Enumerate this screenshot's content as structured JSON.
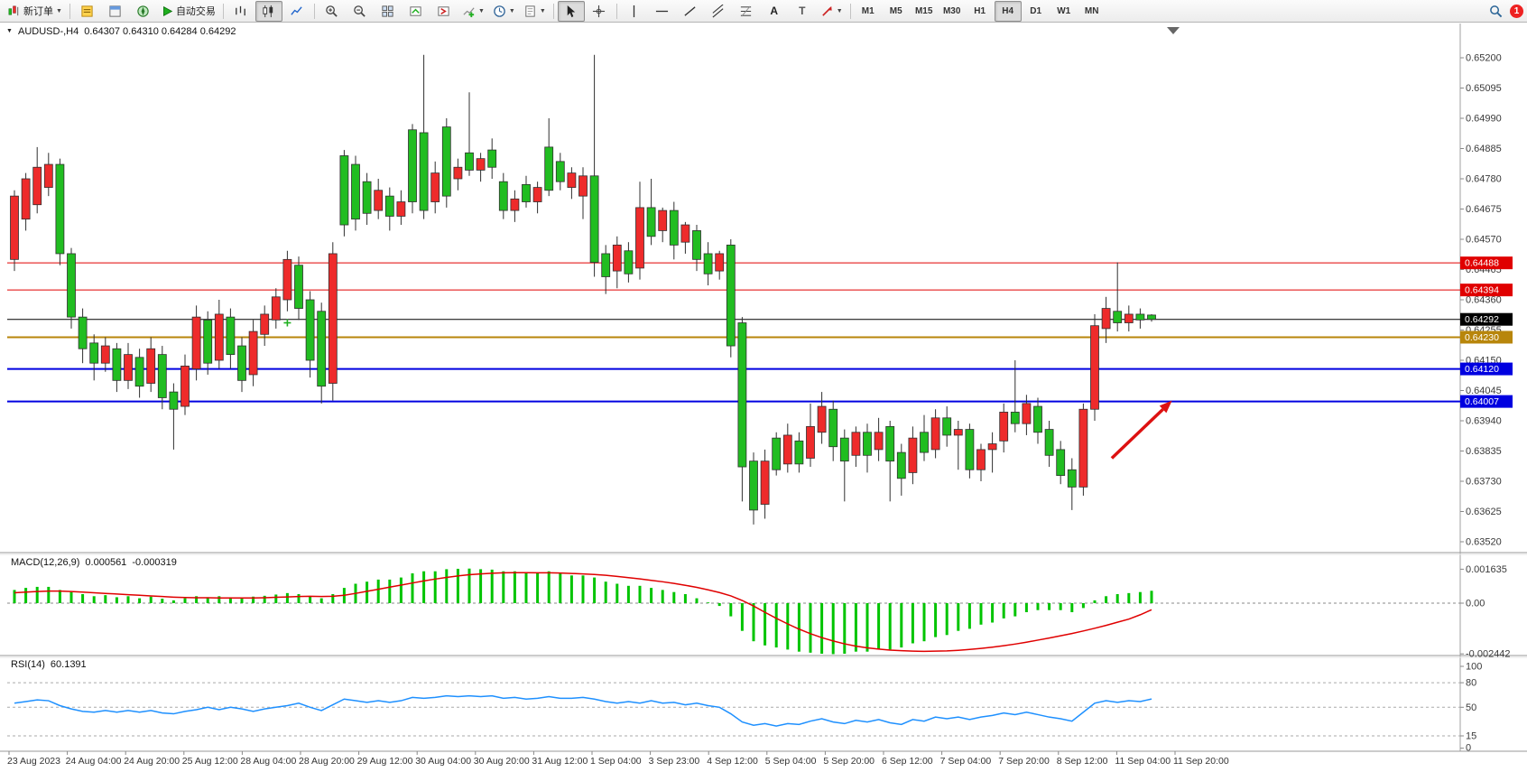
{
  "toolbar": {
    "new_order": "新订单",
    "auto_trade": "自动交易",
    "timeframes": [
      "M1",
      "M5",
      "M15",
      "M30",
      "H1",
      "H4",
      "D1",
      "W1",
      "MN"
    ],
    "active_timeframe": "H4",
    "notification_count": "1",
    "text_tool": "A",
    "label_tool": "T"
  },
  "chart_header": {
    "symbol_period": "AUDUSD-,H4",
    "ohlc_text": "0.64307 0.64310 0.64284 0.64292"
  },
  "chart_data": {
    "type": "candlestick",
    "symbol": "AUDUSD-",
    "period": "H4",
    "price_ticks": [
      "0.65200",
      "0.65095",
      "0.64990",
      "0.64885",
      "0.64780",
      "0.64675",
      "0.64570",
      "0.64465",
      "0.64360",
      "0.64255",
      "0.64150",
      "0.64045",
      "0.63940",
      "0.63835",
      "0.63730",
      "0.63625",
      "0.63520"
    ],
    "candles": [
      [
        0.645,
        0.6474,
        0.6446,
        0.6472
      ],
      [
        0.6464,
        0.648,
        0.646,
        0.6478
      ],
      [
        0.6469,
        0.6489,
        0.6466,
        0.6482
      ],
      [
        0.6475,
        0.6487,
        0.6472,
        0.6483
      ],
      [
        0.6483,
        0.6485,
        0.6448,
        0.6452
      ],
      [
        0.6452,
        0.6454,
        0.6426,
        0.643
      ],
      [
        0.643,
        0.6433,
        0.6414,
        0.6419
      ],
      [
        0.6421,
        0.6424,
        0.6408,
        0.6414
      ],
      [
        0.6414,
        0.6423,
        0.6411,
        0.642
      ],
      [
        0.6419,
        0.6421,
        0.6404,
        0.6408
      ],
      [
        0.6408,
        0.6421,
        0.6405,
        0.6417
      ],
      [
        0.6416,
        0.6419,
        0.6402,
        0.6406
      ],
      [
        0.6407,
        0.6423,
        0.6404,
        0.6419
      ],
      [
        0.6417,
        0.642,
        0.6398,
        0.6402
      ],
      [
        0.6404,
        0.6407,
        0.6384,
        0.6398
      ],
      [
        0.6399,
        0.6417,
        0.6396,
        0.6413
      ],
      [
        0.6412,
        0.6434,
        0.6408,
        0.643
      ],
      [
        0.6429,
        0.6432,
        0.641,
        0.6414
      ],
      [
        0.6415,
        0.6436,
        0.6412,
        0.6431
      ],
      [
        0.643,
        0.6433,
        0.6412,
        0.6417
      ],
      [
        0.642,
        0.6423,
        0.6404,
        0.6408
      ],
      [
        0.641,
        0.6429,
        0.6406,
        0.6425
      ],
      [
        0.6424,
        0.6434,
        0.642,
        0.6431
      ],
      [
        0.6429,
        0.644,
        0.6426,
        0.6437
      ],
      [
        0.6436,
        0.6453,
        0.6432,
        0.645
      ],
      [
        0.6448,
        0.6451,
        0.6429,
        0.6433
      ],
      [
        0.6436,
        0.6439,
        0.6409,
        0.6415
      ],
      [
        0.6432,
        0.6435,
        0.64,
        0.6406
      ],
      [
        0.6407,
        0.6456,
        0.6401,
        0.6452
      ],
      [
        0.6486,
        0.6488,
        0.6458,
        0.6462
      ],
      [
        0.6483,
        0.6486,
        0.646,
        0.6464
      ],
      [
        0.6477,
        0.648,
        0.6462,
        0.6466
      ],
      [
        0.6467,
        0.6478,
        0.6464,
        0.6474
      ],
      [
        0.6472,
        0.6475,
        0.646,
        0.6465
      ],
      [
        0.6465,
        0.6474,
        0.6462,
        0.647
      ],
      [
        0.6495,
        0.6497,
        0.6466,
        0.647
      ],
      [
        0.6494,
        0.6521,
        0.6464,
        0.6467
      ],
      [
        0.647,
        0.6484,
        0.6466,
        0.648
      ],
      [
        0.6496,
        0.6499,
        0.6468,
        0.6472
      ],
      [
        0.6478,
        0.6485,
        0.6474,
        0.6482
      ],
      [
        0.6487,
        0.6508,
        0.6479,
        0.6481
      ],
      [
        0.6481,
        0.6487,
        0.6477,
        0.6485
      ],
      [
        0.6488,
        0.6492,
        0.6478,
        0.6482
      ],
      [
        0.6477,
        0.648,
        0.6464,
        0.6467
      ],
      [
        0.6467,
        0.6474,
        0.6463,
        0.6471
      ],
      [
        0.6476,
        0.6479,
        0.6468,
        0.647
      ],
      [
        0.647,
        0.6477,
        0.6466,
        0.6475
      ],
      [
        0.6489,
        0.6499,
        0.6472,
        0.6474
      ],
      [
        0.6484,
        0.6487,
        0.6474,
        0.6477
      ],
      [
        0.6475,
        0.6482,
        0.6471,
        0.648
      ],
      [
        0.6472,
        0.6482,
        0.6464,
        0.6479
      ],
      [
        0.6479,
        0.6521,
        0.6444,
        0.6449
      ],
      [
        0.6452,
        0.6455,
        0.6438,
        0.6444
      ],
      [
        0.6446,
        0.6458,
        0.644,
        0.6455
      ],
      [
        0.6453,
        0.6456,
        0.6442,
        0.6445
      ],
      [
        0.6447,
        0.6477,
        0.6443,
        0.6468
      ],
      [
        0.6468,
        0.6478,
        0.6455,
        0.6458
      ],
      [
        0.646,
        0.6468,
        0.6456,
        0.6467
      ],
      [
        0.6467,
        0.647,
        0.645,
        0.6455
      ],
      [
        0.6456,
        0.6463,
        0.6452,
        0.6462
      ],
      [
        0.646,
        0.6462,
        0.6446,
        0.645
      ],
      [
        0.6452,
        0.6456,
        0.6441,
        0.6445
      ],
      [
        0.6446,
        0.6453,
        0.6443,
        0.6452
      ],
      [
        0.6455,
        0.6457,
        0.6416,
        0.642
      ],
      [
        0.6428,
        0.643,
        0.6366,
        0.6378
      ],
      [
        0.638,
        0.6383,
        0.6358,
        0.6363
      ],
      [
        0.6365,
        0.6384,
        0.636,
        0.638
      ],
      [
        0.6388,
        0.639,
        0.6375,
        0.6377
      ],
      [
        0.6379,
        0.6393,
        0.6376,
        0.6389
      ],
      [
        0.6387,
        0.639,
        0.6376,
        0.6379
      ],
      [
        0.6381,
        0.64,
        0.6378,
        0.6392
      ],
      [
        0.639,
        0.6404,
        0.6386,
        0.6399
      ],
      [
        0.6398,
        0.6401,
        0.638,
        0.6385
      ],
      [
        0.6388,
        0.6391,
        0.6366,
        0.638
      ],
      [
        0.6382,
        0.6392,
        0.6378,
        0.639
      ],
      [
        0.639,
        0.6393,
        0.6376,
        0.6382
      ],
      [
        0.6384,
        0.6395,
        0.638,
        0.639
      ],
      [
        0.6392,
        0.6394,
        0.6366,
        0.638
      ],
      [
        0.6383,
        0.6386,
        0.6368,
        0.6374
      ],
      [
        0.6376,
        0.6392,
        0.6372,
        0.6388
      ],
      [
        0.639,
        0.6396,
        0.638,
        0.6383
      ],
      [
        0.6384,
        0.6398,
        0.6381,
        0.6395
      ],
      [
        0.6395,
        0.6399,
        0.6385,
        0.6389
      ],
      [
        0.6389,
        0.6394,
        0.6377,
        0.6391
      ],
      [
        0.6391,
        0.6393,
        0.6374,
        0.6377
      ],
      [
        0.6377,
        0.6386,
        0.6373,
        0.6384
      ],
      [
        0.6384,
        0.639,
        0.6376,
        0.6386
      ],
      [
        0.6387,
        0.64,
        0.6383,
        0.6397
      ],
      [
        0.6397,
        0.6415,
        0.639,
        0.6393
      ],
      [
        0.6393,
        0.6403,
        0.6389,
        0.64
      ],
      [
        0.6399,
        0.6402,
        0.6386,
        0.639
      ],
      [
        0.6391,
        0.6394,
        0.6378,
        0.6382
      ],
      [
        0.6384,
        0.6387,
        0.6372,
        0.6375
      ],
      [
        0.6377,
        0.6381,
        0.6363,
        0.6371
      ],
      [
        0.6371,
        0.64,
        0.6368,
        0.6398
      ],
      [
        0.6398,
        0.6431,
        0.6394,
        0.6427
      ],
      [
        0.6426,
        0.6437,
        0.6421,
        0.6433
      ],
      [
        0.6432,
        0.6449,
        0.6425,
        0.6428
      ],
      [
        0.6428,
        0.6434,
        0.6425,
        0.6431
      ],
      [
        0.6431,
        0.6433,
        0.6426,
        0.6429
      ],
      [
        0.64307,
        0.6431,
        0.64284,
        0.64292
      ]
    ],
    "hlines": [
      {
        "price": 0.64488,
        "label": "0.64488",
        "color": "#e00000",
        "width": 1
      },
      {
        "price": 0.64394,
        "label": "0.64394",
        "color": "#e00000",
        "width": 1
      },
      {
        "price": 0.64292,
        "label": "0.64292",
        "color": "#000000",
        "width": 1
      },
      {
        "price": 0.6423,
        "label": "0.64230",
        "color": "#b8860b",
        "width": 2
      },
      {
        "price": 0.6412,
        "label": "0.64120",
        "color": "#0000e0",
        "width": 2
      },
      {
        "price": 0.64007,
        "label": "0.64007",
        "color": "#0000e0",
        "width": 2
      }
    ],
    "arrow": {
      "from_bar": 96.5,
      "from_price": 0.6381,
      "to_bar": 101.8,
      "to_price": 0.6401,
      "color": "#dd1111"
    },
    "plus_marker": {
      "bar": 24,
      "price": 0.6428,
      "color": "#1faf1f"
    },
    "macd": {
      "label": "MACD(12,26,9)",
      "main_value": "0.000561",
      "signal_value": "-0.000319",
      "axis": [
        {
          "label": "0.001635",
          "value": 0.001635
        },
        {
          "label": "0.00",
          "value": 0
        },
        {
          "label": "-0.002442",
          "value": -0.002442
        }
      ],
      "hist": [
        0.0006,
        0.0007,
        0.00075,
        0.00075,
        0.0006,
        0.0005,
        0.0004,
        0.0003,
        0.00035,
        0.00025,
        0.0003,
        0.0002,
        0.00028,
        0.00018,
        0.0001,
        0.0002,
        0.0003,
        0.00025,
        0.0003,
        0.00025,
        0.0002,
        0.00028,
        0.00032,
        0.00038,
        0.00045,
        0.0004,
        0.0003,
        0.0002,
        0.0004,
        0.0007,
        0.0009,
        0.001,
        0.0011,
        0.0011,
        0.0012,
        0.0014,
        0.0015,
        0.0015,
        0.0016,
        0.00162,
        0.00163,
        0.0016,
        0.00158,
        0.0015,
        0.0015,
        0.0014,
        0.0014,
        0.0015,
        0.0014,
        0.0013,
        0.0013,
        0.0012,
        0.001,
        0.0009,
        0.0008,
        0.0008,
        0.0007,
        0.0006,
        0.0005,
        0.0004,
        0.0002,
        0,
        -0.0001,
        -0.0006,
        -0.0013,
        -0.0018,
        -0.002,
        -0.0021,
        -0.0022,
        -0.0023,
        -0.00235,
        -0.0024,
        -0.00242,
        -0.0024,
        -0.0023,
        -0.0023,
        -0.0022,
        -0.0022,
        -0.0021,
        -0.0019,
        -0.0018,
        -0.0016,
        -0.0015,
        -0.0013,
        -0.0012,
        -0.001,
        -0.0009,
        -0.0007,
        -0.0006,
        -0.0004,
        -0.0003,
        -0.0003,
        -0.0003,
        -0.0004,
        -0.0002,
        0.0001,
        0.0003,
        0.0004,
        0.00045,
        0.0005,
        0.000561
      ],
      "signal": [
        0.0005,
        0.00053,
        0.00056,
        0.00058,
        0.00058,
        0.00056,
        0.00053,
        0.0005,
        0.00047,
        0.00044,
        0.00041,
        0.00038,
        0.00035,
        0.00032,
        0.00029,
        0.00027,
        0.00026,
        0.00026,
        0.00025,
        0.00025,
        0.00025,
        0.00025,
        0.00026,
        0.00028,
        0.0003,
        0.00032,
        0.00033,
        0.00032,
        0.00033,
        0.00038,
        0.00047,
        0.00057,
        0.00067,
        0.00077,
        0.00087,
        0.00097,
        0.00107,
        0.00116,
        0.00124,
        0.00131,
        0.00137,
        0.00141,
        0.00144,
        0.00146,
        0.00147,
        0.00147,
        0.00146,
        0.00146,
        0.00145,
        0.00143,
        0.00141,
        0.00138,
        0.00134,
        0.00129,
        0.00123,
        0.00117,
        0.0011,
        0.00103,
        0.00095,
        0.00086,
        0.00076,
        0.00064,
        0.00051,
        0.00035,
        0.00013,
        -0.00014,
        -0.00044,
        -0.00073,
        -0.001,
        -0.00125,
        -0.00147,
        -0.00166,
        -0.00182,
        -0.00196,
        -0.00207,
        -0.00215,
        -0.00221,
        -0.00226,
        -0.00229,
        -0.00231,
        -0.00232,
        -0.00231,
        -0.0023,
        -0.00227,
        -0.00223,
        -0.00218,
        -0.00212,
        -0.00205,
        -0.00197,
        -0.00188,
        -0.00178,
        -0.00168,
        -0.00157,
        -0.00146,
        -0.00134,
        -0.00121,
        -0.00107,
        -0.00092,
        -0.00077,
        -0.00056,
        -0.000319
      ]
    },
    "rsi": {
      "label": "RSI(14)",
      "value": "60.1391",
      "axis": [
        {
          "label": "100",
          "value": 100
        },
        {
          "label": "80",
          "value": 80
        },
        {
          "label": "50",
          "value": 50
        },
        {
          "label": "15",
          "value": 15
        },
        {
          "label": "0",
          "value": 0
        }
      ],
      "levels": [
        80,
        50,
        15
      ],
      "values": [
        55,
        57,
        59,
        58,
        52,
        48,
        45,
        44,
        46,
        44,
        46,
        44,
        46,
        43,
        42,
        45,
        47,
        50,
        47,
        50,
        48,
        45,
        48,
        50,
        52,
        55,
        50,
        46,
        53,
        60,
        58,
        56,
        58,
        56,
        58,
        62,
        61,
        62,
        64,
        63,
        64,
        63,
        64,
        61,
        62,
        60,
        61,
        63,
        61,
        61,
        62,
        60,
        57,
        55,
        57,
        55,
        58,
        55,
        56,
        53,
        55,
        52,
        50,
        42,
        32,
        28,
        30,
        27,
        30,
        29,
        33,
        36,
        32,
        30,
        34,
        32,
        35,
        31,
        29,
        35,
        33,
        38,
        36,
        38,
        35,
        38,
        40,
        43,
        41,
        44,
        41,
        38,
        36,
        33,
        44,
        55,
        58,
        56,
        58,
        57,
        60.14
      ]
    },
    "dates": [
      "23 Aug 2023",
      "24 Aug 04:00",
      "24 Aug 20:00",
      "25 Aug 12:00",
      "28 Aug 04:00",
      "28 Aug 20:00",
      "29 Aug 12:00",
      "30 Aug 04:00",
      "30 Aug 20:00",
      "31 Aug 12:00",
      "1 Sep 04:00",
      "3 Sep 23:00",
      "4 Sep 12:00",
      "5 Sep 04:00",
      "5 Sep 20:00",
      "6 Sep 12:00",
      "7 Sep 04:00",
      "7 Sep 20:00",
      "8 Sep 12:00",
      "11 Sep 04:00",
      "11 Sep 20:00"
    ],
    "colors": {
      "up_body": "#ee2b2b",
      "down_body": "#21bd21",
      "outline": "#303030",
      "macd_hist": "#00c400",
      "macd_signal": "#e00000",
      "rsi_line": "#1e90ff",
      "blue_line": "#0000e0",
      "red_line": "#e00000",
      "gold_line": "#b8860b"
    }
  }
}
